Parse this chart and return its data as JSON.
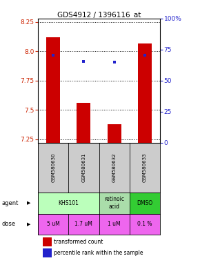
{
  "title": "GDS4912 / 1396116_at",
  "samples": [
    "GSM580630",
    "GSM580631",
    "GSM580632",
    "GSM580633"
  ],
  "bar_values": [
    8.12,
    7.56,
    7.38,
    8.07
  ],
  "bar_bottom": 7.22,
  "percentile_values": [
    7.965,
    7.915,
    7.907,
    7.965
  ],
  "ylim": [
    7.22,
    8.28
  ],
  "yticks": [
    7.25,
    7.5,
    7.75,
    8.0,
    8.25
  ],
  "right_ytick_positions": [
    0,
    25,
    50,
    75,
    100
  ],
  "right_ytick_labels": [
    "0",
    "25",
    "50",
    "75",
    "100%"
  ],
  "bar_color": "#cc0000",
  "percentile_color": "#2222cc",
  "agent_groups": [
    {
      "label": "KHS101",
      "start": 0,
      "end": 2,
      "color": "#bbffbb"
    },
    {
      "label": "retinoic\nacid",
      "start": 2,
      "end": 3,
      "color": "#aaddaa"
    },
    {
      "label": "DMSO",
      "start": 3,
      "end": 4,
      "color": "#33cc33"
    }
  ],
  "dose_labels": [
    "5 uM",
    "1.7 uM",
    "1 uM",
    "0.1 %"
  ],
  "dose_color": "#ee66ee",
  "sample_bg": "#cccccc",
  "left_tick_color": "#cc2200",
  "right_tick_color": "#2222cc",
  "legend_bar_label": "transformed count",
  "legend_dot_label": "percentile rank within the sample"
}
